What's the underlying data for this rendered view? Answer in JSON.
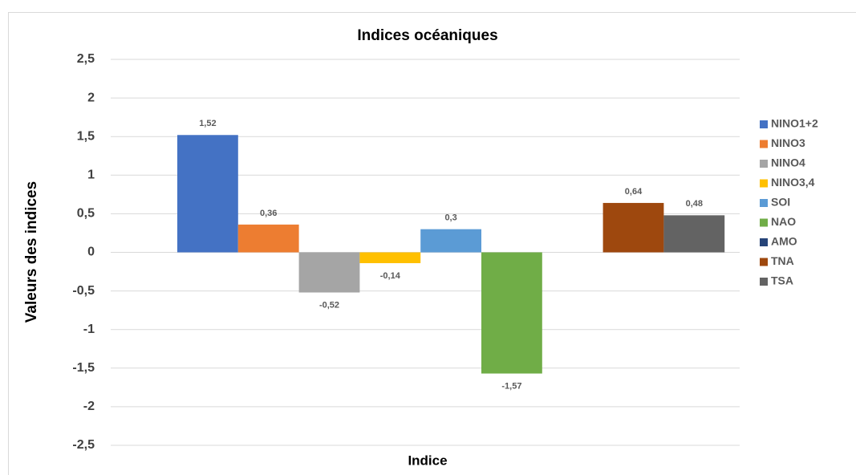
{
  "chart_data": {
    "type": "bar",
    "title": "Indices océaniques",
    "x_label": "Indice",
    "y_label": "Valeurs des indices",
    "ylim": [
      -2.5,
      2.5
    ],
    "yticks": [
      {
        "value": 2.5,
        "label": "2,5"
      },
      2,
      {
        "value": 1.5,
        "label": "1,5"
      },
      1,
      {
        "value": 0.5,
        "label": "0,5"
      },
      0,
      {
        "value": -0.5,
        "label": "-0,5"
      },
      -1,
      {
        "value": -1.5,
        "label": "-1,5"
      },
      -2,
      {
        "value": -2.5,
        "label": "-2,5"
      }
    ],
    "grid": true,
    "legend": "right",
    "series": [
      {
        "name": "NINO1+2",
        "color": "#4472c4",
        "values": [
          1.52
        ],
        "value_labels": [
          "1,52"
        ]
      },
      {
        "name": "NINO3",
        "color": "#ed7d31",
        "values": [
          0.36
        ],
        "value_labels": [
          "0,36"
        ]
      },
      {
        "name": "NINO4",
        "color": "#a5a5a5",
        "values": [
          -0.52
        ],
        "value_labels": [
          "-0,52"
        ]
      },
      {
        "name": "NINO3,4",
        "color": "#ffc000",
        "values": [
          -0.14
        ],
        "value_labels": [
          "-0,14"
        ]
      },
      {
        "name": "SOI",
        "color": "#5b9bd5",
        "values": [
          0.3
        ],
        "value_labels": [
          "0,3"
        ]
      },
      {
        "name": "NAO",
        "color": "#70ad47",
        "values": [
          -1.57
        ],
        "value_labels": [
          "-1,57"
        ]
      },
      {
        "name": "AMO",
        "color": "#264478",
        "values": [
          null
        ],
        "value_labels": [
          null
        ]
      },
      {
        "name": "TNA",
        "color": "#9e480e",
        "values": [
          0.64
        ],
        "value_labels": [
          "0,64"
        ]
      },
      {
        "name": "TSA",
        "color": "#636363",
        "values": [
          0.48
        ],
        "value_labels": [
          "0,48"
        ]
      }
    ]
  }
}
